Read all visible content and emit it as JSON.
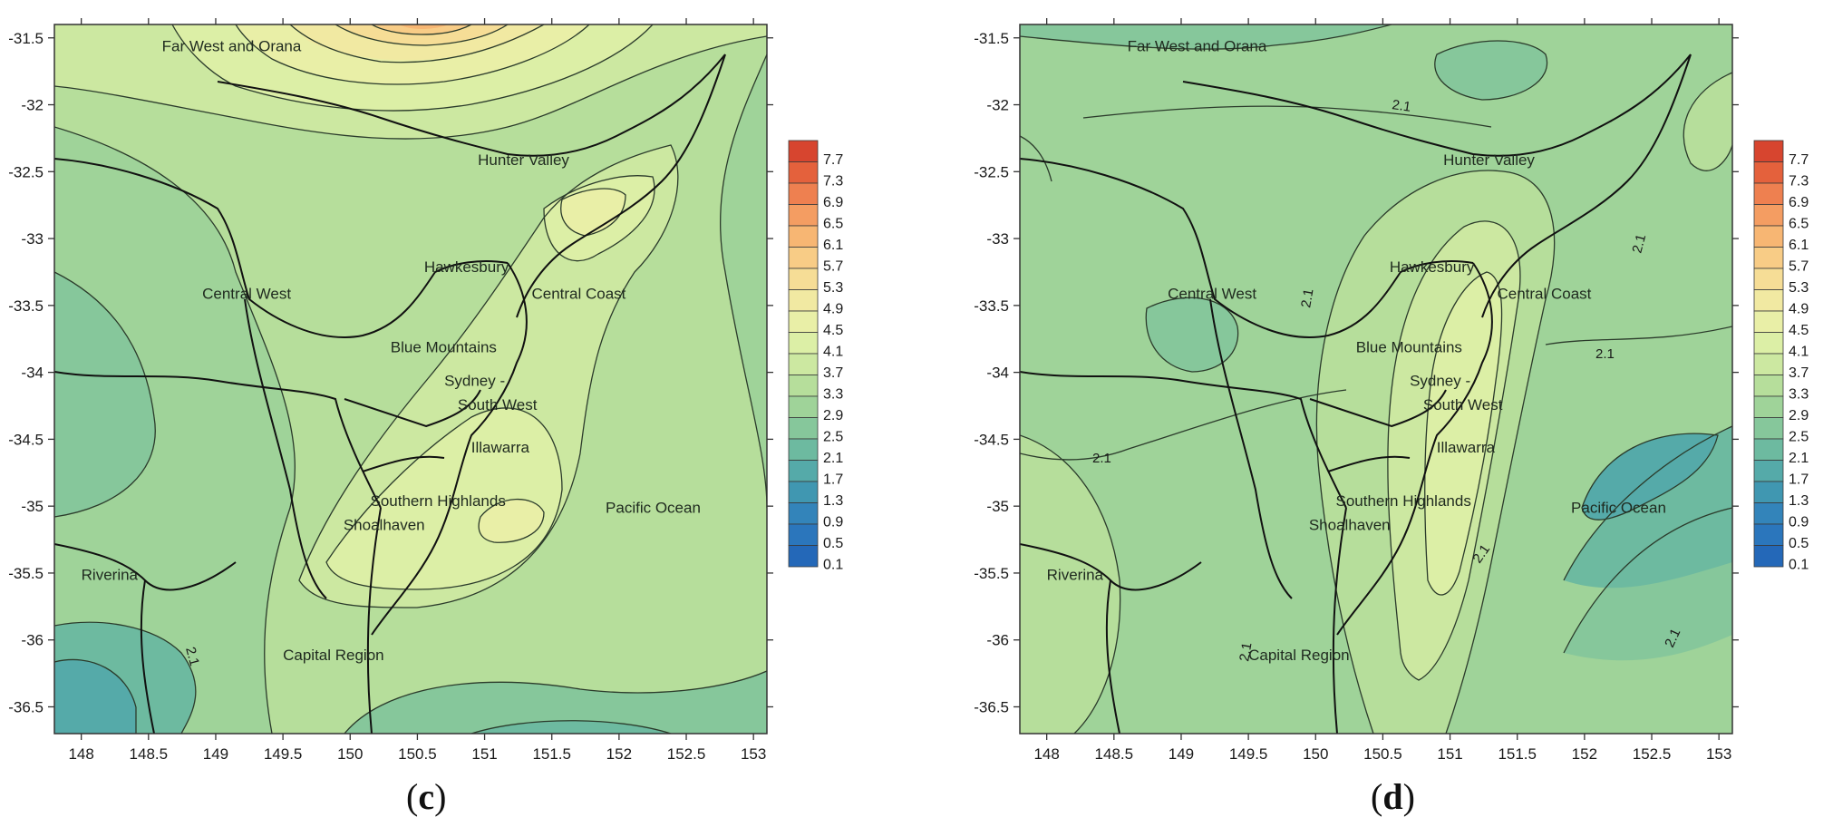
{
  "panels": [
    {
      "id": "c",
      "caption": {
        "open": "(",
        "letter": "c",
        "close": ")"
      },
      "y_ticks": [
        "-31.5",
        "-32",
        "-32.5",
        "-33",
        "-33.5",
        "-34",
        "-34.5",
        "-35",
        "-35.5",
        "-36",
        "-36.5"
      ],
      "x_ticks": [
        "148",
        "148.5",
        "149",
        "149.5",
        "150",
        "150.5",
        "151",
        "151.5",
        "152",
        "152.5",
        "153"
      ],
      "regions": [
        {
          "name": "Far West and Orana",
          "lon": 148.6,
          "lat": -31.6
        },
        {
          "name": "Hunter Valley",
          "lon": 150.95,
          "lat": -32.45
        },
        {
          "name": "Hawkesbury",
          "lon": 150.55,
          "lat": -33.25
        },
        {
          "name": "Central Coast",
          "lon": 151.35,
          "lat": -33.45
        },
        {
          "name": "Central West",
          "lon": 148.9,
          "lat": -33.45
        },
        {
          "name": "Blue Mountains",
          "lon": 150.3,
          "lat": -33.85
        },
        {
          "name": "Sydney -",
          "lon": 150.7,
          "lat": -34.1
        },
        {
          "name": "South West",
          "lon": 150.8,
          "lat": -34.28
        },
        {
          "name": "Illawarra",
          "lon": 150.9,
          "lat": -34.6
        },
        {
          "name": "Southern Highlands",
          "lon": 150.15,
          "lat": -35.0
        },
        {
          "name": "Shoalhaven",
          "lon": 149.95,
          "lat": -35.18
        },
        {
          "name": "Pacific Ocean",
          "lon": 151.9,
          "lat": -35.05
        },
        {
          "name": "Riverina",
          "lon": 148.0,
          "lat": -35.55
        },
        {
          "name": "Capital Region",
          "lon": 149.5,
          "lat": -36.15
        }
      ],
      "contour_labels": [
        "2.1"
      ]
    },
    {
      "id": "d",
      "caption": {
        "open": "(",
        "letter": "d",
        "close": ")"
      },
      "y_ticks": [
        "-31.5",
        "-32",
        "-32.5",
        "-33",
        "-33.5",
        "-34",
        "-34.5",
        "-35",
        "-35.5",
        "-36",
        "-36.5"
      ],
      "x_ticks": [
        "148",
        "148.5",
        "149",
        "149.5",
        "150",
        "150.5",
        "151",
        "151.5",
        "152",
        "152.5",
        "153"
      ],
      "regions": [
        {
          "name": "Far West and Orana",
          "lon": 148.6,
          "lat": -31.6
        },
        {
          "name": "Hunter Valley",
          "lon": 150.95,
          "lat": -32.45
        },
        {
          "name": "Hawkesbury",
          "lon": 150.55,
          "lat": -33.25
        },
        {
          "name": "Central Coast",
          "lon": 151.35,
          "lat": -33.45
        },
        {
          "name": "Central West",
          "lon": 148.9,
          "lat": -33.45
        },
        {
          "name": "Blue Mountains",
          "lon": 150.3,
          "lat": -33.85
        },
        {
          "name": "Sydney -",
          "lon": 150.7,
          "lat": -34.1
        },
        {
          "name": "South West",
          "lon": 150.8,
          "lat": -34.28
        },
        {
          "name": "Illawarra",
          "lon": 150.9,
          "lat": -34.6
        },
        {
          "name": "Southern Highlands",
          "lon": 150.15,
          "lat": -35.0
        },
        {
          "name": "Shoalhaven",
          "lon": 149.95,
          "lat": -35.18
        },
        {
          "name": "Pacific Ocean",
          "lon": 151.9,
          "lat": -35.05
        },
        {
          "name": "Riverina",
          "lon": 148.0,
          "lat": -35.55
        },
        {
          "name": "Capital Region",
          "lon": 149.5,
          "lat": -36.15
        }
      ],
      "contour_labels": [
        "2.1",
        "2.1",
        "2.1",
        "2.1",
        "2.1",
        "2.1",
        "2.1"
      ]
    }
  ],
  "colorbar": {
    "labels": [
      "7.7",
      "7.3",
      "6.9",
      "6.5",
      "6.1",
      "5.7",
      "5.3",
      "4.9",
      "4.5",
      "4.1",
      "3.7",
      "3.3",
      "2.9",
      "2.5",
      "2.1",
      "1.7",
      "1.3",
      "0.9",
      "0.5",
      "0.1"
    ],
    "colors": [
      "#d7452f",
      "#e4613c",
      "#ee8050",
      "#f49d62",
      "#f7b673",
      "#f8cc86",
      "#f6dd96",
      "#f1e9a2",
      "#e9efa7",
      "#dcefa6",
      "#cce8a1",
      "#b6de9b",
      "#9fd399",
      "#86c79b",
      "#6dbaa0",
      "#55aaa9",
      "#4097b1",
      "#3384ba",
      "#2b76bc",
      "#2468b8"
    ]
  },
  "map_extent": {
    "lon_min": 147.8,
    "lon_max": 153.1,
    "lat_min": -36.7,
    "lat_max": -31.4
  }
}
